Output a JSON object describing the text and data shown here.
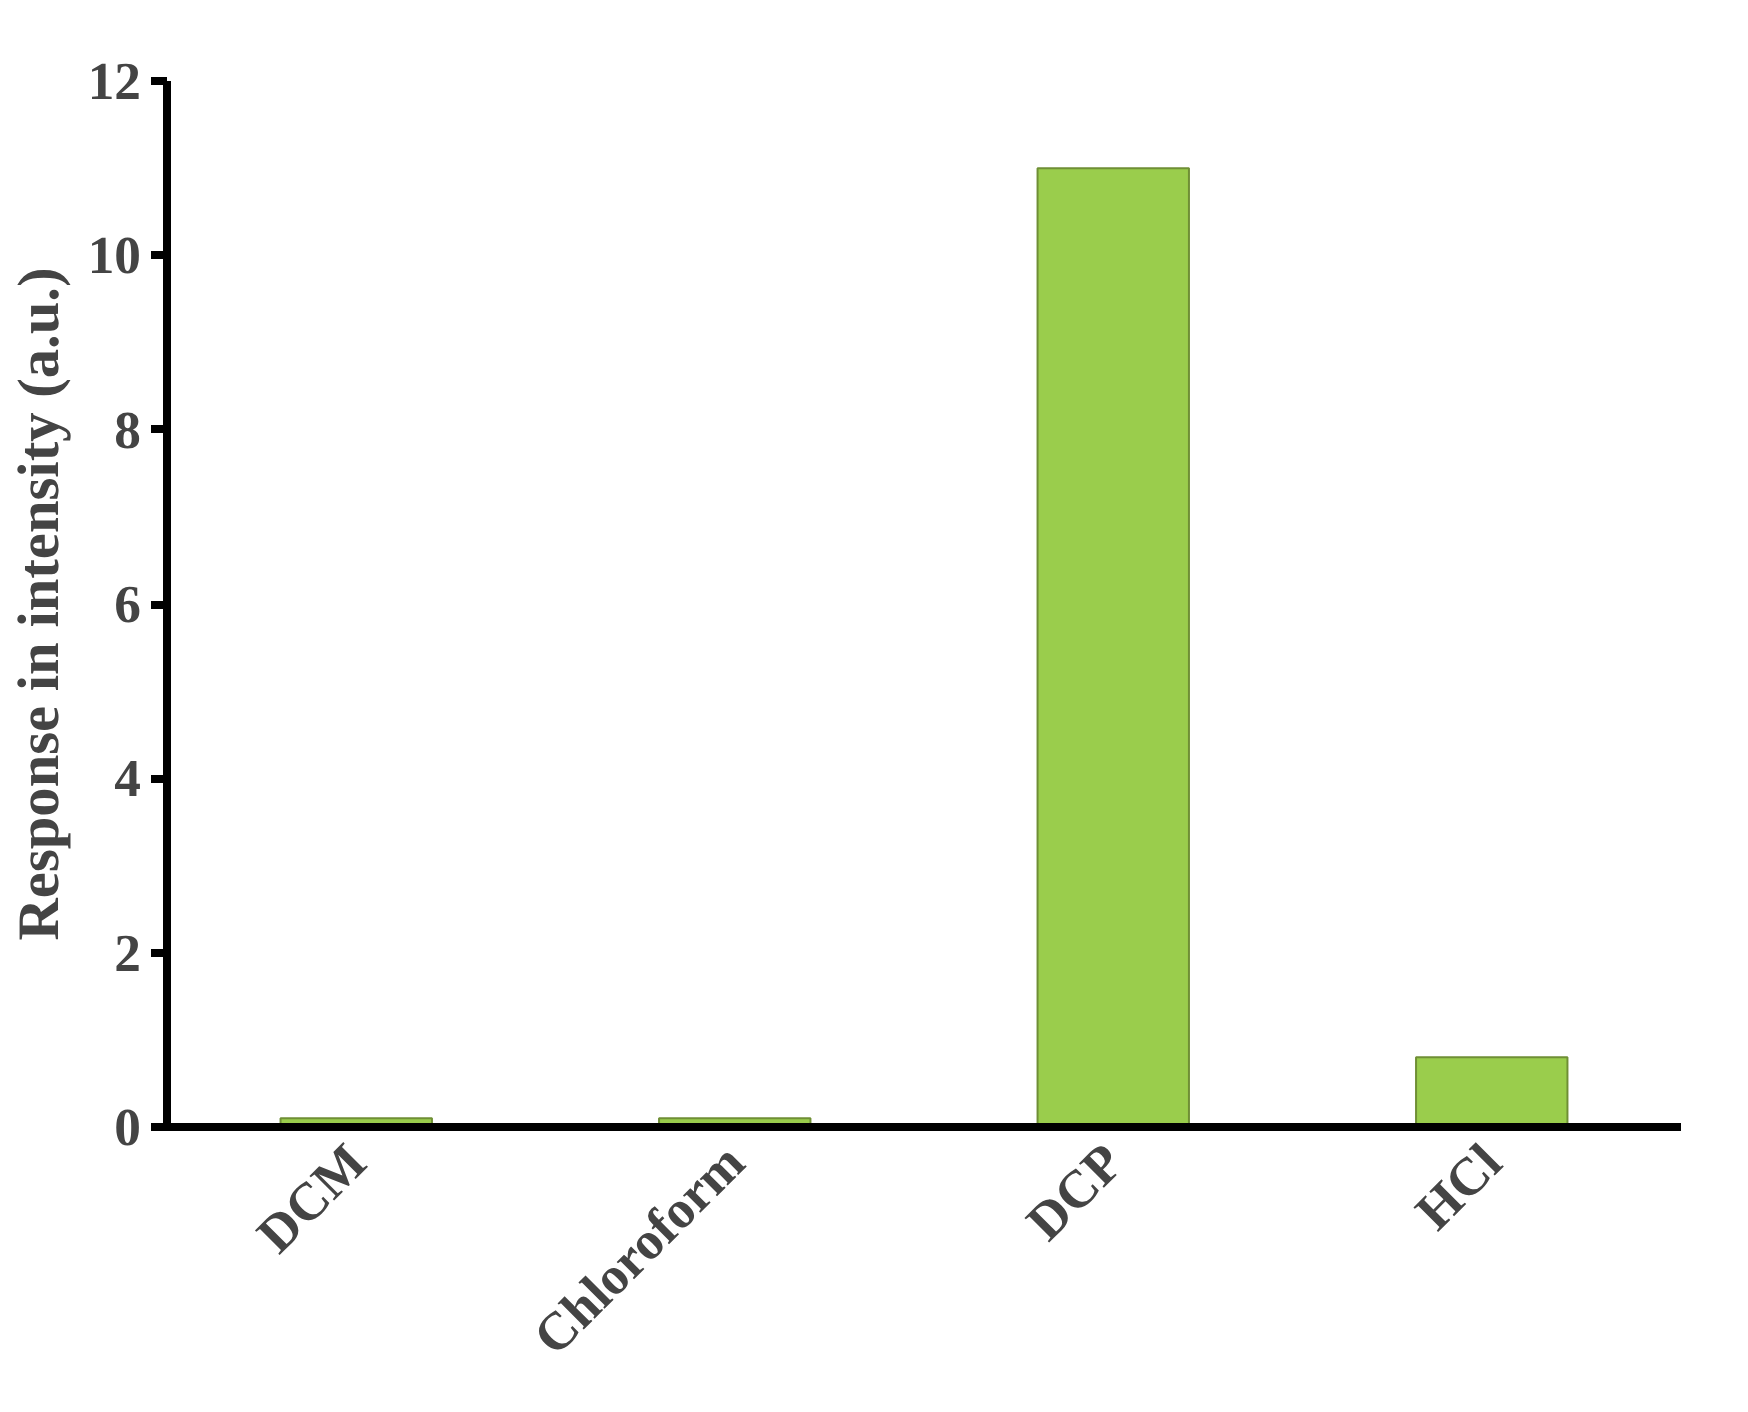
{
  "chart_data": {
    "type": "bar",
    "ylabel": "Response in intensity (a.u.)",
    "categories": [
      "DCM",
      "Chloroform",
      "DCP",
      "HCl"
    ],
    "values": [
      0.1,
      0.1,
      11,
      0.8
    ],
    "color": "#9acd4c",
    "ylim": [
      0,
      12
    ],
    "yticks": [
      0,
      2,
      4,
      6,
      8,
      10,
      12
    ],
    "grid": false
  }
}
